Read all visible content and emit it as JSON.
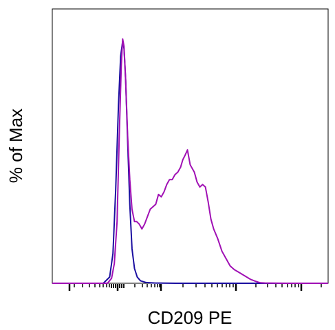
{
  "chart_data": {
    "type": "line",
    "title": "",
    "xlabel": "CD209 PE",
    "ylabel": "% of Max",
    "x_scale": "biexponential",
    "xlim": [
      0,
      100
    ],
    "ylim": [
      0,
      100
    ],
    "x_tick_labels": [],
    "y_tick_labels": [],
    "grid": false,
    "legend": "none",
    "series": [
      {
        "color": "#1a0ea0",
        "x": [
          0,
          18.5,
          20.8,
          22.0,
          23.0,
          24.0,
          24.8,
          25.5,
          26.0,
          26.6,
          27.3,
          28.1,
          28.9,
          29.8,
          30.8,
          32.0,
          34.0,
          37.0,
          45.0,
          60.0,
          80.0,
          100.0
        ],
        "y": [
          0,
          0,
          2.5,
          12,
          38,
          72,
          92,
          98,
          95,
          82,
          58,
          32,
          14,
          6,
          2.5,
          1,
          0.3,
          0.1,
          0,
          0,
          0,
          0
        ]
      },
      {
        "color": "#a010b4",
        "x": [
          0,
          20.0,
          21.5,
          22.5,
          23.5,
          24.3,
          25.0,
          25.5,
          26.0,
          26.6,
          27.3,
          28.1,
          28.9,
          29.8,
          30.6,
          31.5,
          32.5,
          33.5,
          34.5,
          35.5,
          36.5,
          37.5,
          38.5,
          39.5,
          40.5,
          41.5,
          42.5,
          43.5,
          44.5,
          45.5,
          46.5,
          47.3,
          48.2,
          49.0,
          49.5,
          50.0,
          50.5,
          51.5,
          52.5,
          53.5,
          54.5,
          55.5,
          56.5,
          57.5,
          58.5,
          60.0,
          61.5,
          63.0,
          64.5,
          66.0,
          67.5,
          69.0,
          70.5,
          72.0,
          73.5,
          74.5,
          75.5,
          77.0,
          79.0,
          85.0,
          100.0
        ],
        "y": [
          0,
          0,
          2,
          8,
          25,
          60,
          88,
          99,
          96,
          82,
          60,
          42,
          30,
          25,
          25,
          24,
          22,
          24,
          27,
          30,
          31,
          32,
          36,
          35,
          37,
          40,
          42,
          42,
          44,
          45,
          47,
          50,
          52,
          54,
          51,
          48,
          47,
          45,
          41,
          39,
          40,
          39,
          33,
          26,
          22,
          18,
          13,
          10,
          7,
          5.5,
          4.5,
          3.5,
          2.5,
          1.5,
          0.9,
          0.5,
          0.2,
          0.1,
          0.05,
          0,
          0
        ]
      }
    ]
  }
}
